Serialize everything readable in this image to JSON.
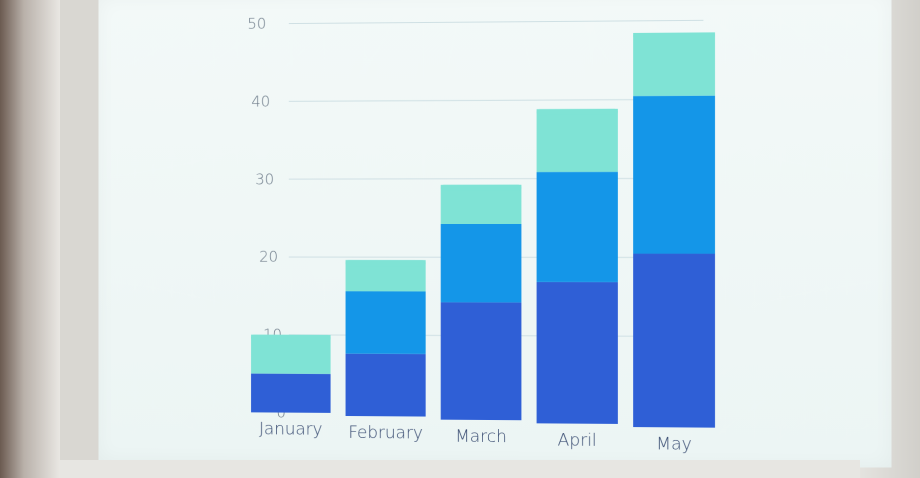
{
  "chart_data": {
    "type": "bar",
    "stacked": true,
    "title": "",
    "xlabel": "",
    "ylabel": "",
    "ylim": [
      0,
      50
    ],
    "yticks": [
      0,
      10,
      20,
      30,
      40,
      50
    ],
    "grid": true,
    "categories": [
      "January",
      "February",
      "March",
      "April",
      "May"
    ],
    "series": [
      {
        "values": [
          5,
          8,
          15,
          18,
          22
        ],
        "color": "#2f5fd6"
      },
      {
        "values": [
          0,
          8,
          10,
          14,
          20
        ],
        "color": "#1496e8"
      },
      {
        "values": [
          5,
          4,
          5,
          8,
          8
        ],
        "color": "#7fe3d5"
      }
    ]
  }
}
